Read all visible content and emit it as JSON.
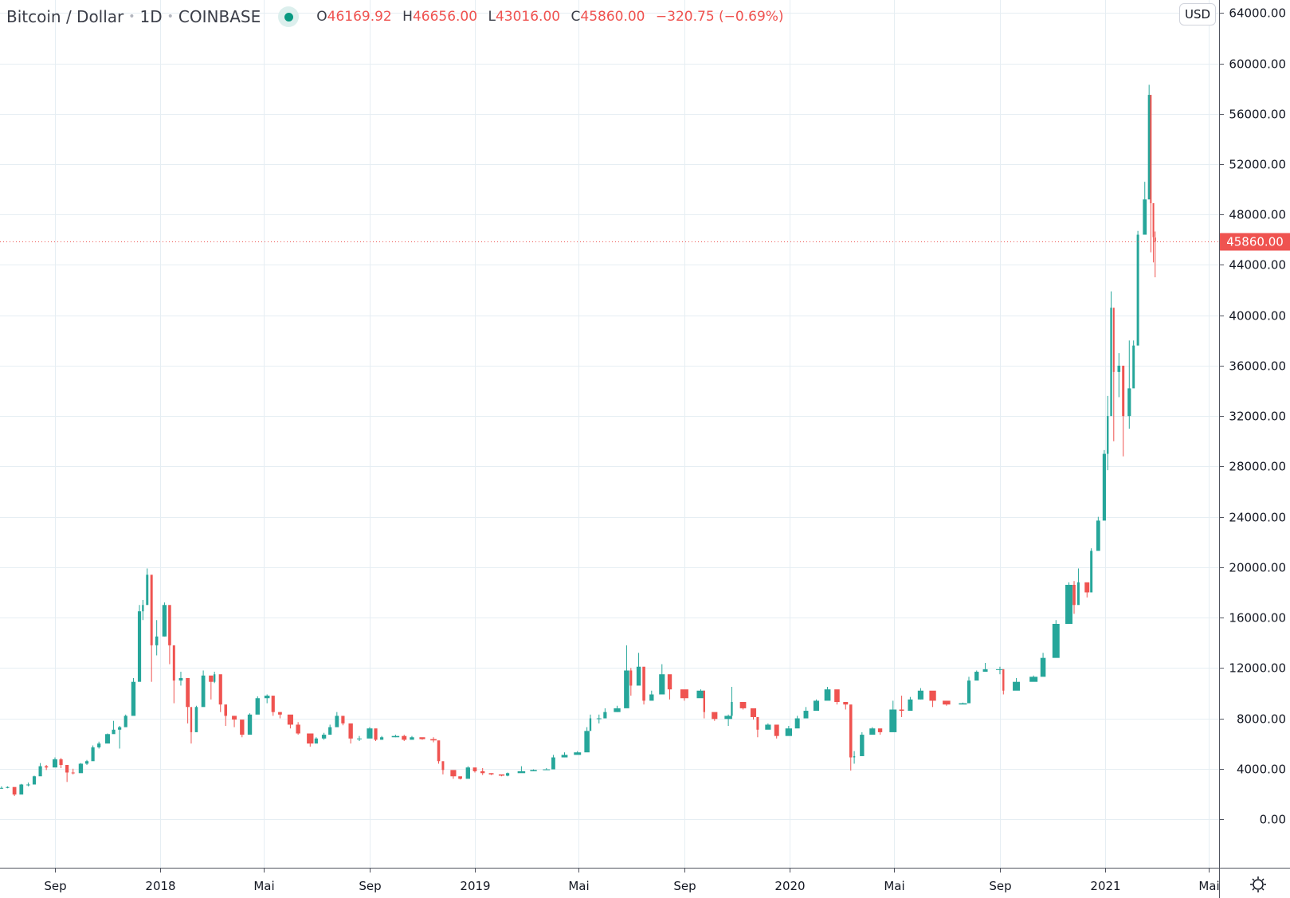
{
  "header": {
    "symbol": "Bitcoin / Dollar",
    "interval": "1D",
    "exchange": "COINBASE",
    "open_label": "O",
    "open": "46169.92",
    "high_label": "H",
    "high": "46656.00",
    "low_label": "L",
    "low": "43016.00",
    "close_label": "C",
    "close": "45860.00",
    "change": "−320.75 (−0.69%)"
  },
  "currency_badge": "USD",
  "settings_icon": "gear-icon",
  "colors": {
    "up": "#26a69a",
    "down": "#ef5350",
    "grid": "#e6eef3",
    "last_price": "#ef5350"
  },
  "chart_data": {
    "type": "candlestick",
    "title": "",
    "ylim": [
      -4000,
      64000
    ],
    "grid": true,
    "y_ticks": [
      "64000.00",
      "60000.00",
      "56000.00",
      "52000.00",
      "48000.00",
      "44000.00",
      "40000.00",
      "36000.00",
      "32000.00",
      "28000.00",
      "24000.00",
      "20000.00",
      "16000.00",
      "12000.00",
      "8000.00",
      "4000.00",
      "0.00"
    ],
    "x_ticks": [
      {
        "label": "Sep",
        "date": "2017-09-01"
      },
      {
        "label": "2018",
        "date": "2018-01-01"
      },
      {
        "label": "Mai",
        "date": "2018-05-01"
      },
      {
        "label": "Sep",
        "date": "2018-09-01"
      },
      {
        "label": "2019",
        "date": "2019-01-01"
      },
      {
        "label": "Mai",
        "date": "2019-05-01"
      },
      {
        "label": "Sep",
        "date": "2019-09-01"
      },
      {
        "label": "2020",
        "date": "2020-01-01"
      },
      {
        "label": "Mai",
        "date": "2020-05-01"
      },
      {
        "label": "Sep",
        "date": "2020-09-01"
      },
      {
        "label": "2021",
        "date": "2021-01-01"
      },
      {
        "label": "Mai",
        "date": "2021-05-01"
      }
    ],
    "last_price": 45860,
    "last_price_label": "45860.00",
    "columns": [
      "date",
      "close",
      "high",
      "low"
    ],
    "candles": [
      [
        "2017-07-01",
        2480,
        2600,
        2400
      ],
      [
        "2017-07-08",
        2550,
        2600,
        2450
      ],
      [
        "2017-07-16",
        1950,
        2350,
        1830
      ],
      [
        "2017-07-24",
        2750,
        2800,
        2600
      ],
      [
        "2017-08-01",
        2750,
        2900,
        2600
      ],
      [
        "2017-08-08",
        3400,
        3450,
        3200
      ],
      [
        "2017-08-15",
        4200,
        4450,
        3950
      ],
      [
        "2017-08-22",
        4100,
        4300,
        3900
      ],
      [
        "2017-09-01",
        4750,
        4900,
        4650
      ],
      [
        "2017-09-08",
        4300,
        4850,
        4050
      ],
      [
        "2017-09-15",
        3700,
        3900,
        2950
      ],
      [
        "2017-09-22",
        3650,
        4000,
        3550
      ],
      [
        "2017-10-01",
        4400,
        4450,
        4150
      ],
      [
        "2017-10-08",
        4600,
        4700,
        4300
      ],
      [
        "2017-10-15",
        5700,
        5850,
        5400
      ],
      [
        "2017-10-22",
        6000,
        6150,
        5600
      ],
      [
        "2017-11-01",
        6750,
        6800,
        6100
      ],
      [
        "2017-11-08",
        7100,
        7800,
        6900
      ],
      [
        "2017-11-15",
        7300,
        7400,
        5600
      ],
      [
        "2017-11-22",
        8200,
        8300,
        7800
      ],
      [
        "2017-12-01",
        10900,
        11200,
        9500
      ],
      [
        "2017-12-08",
        16500,
        17000,
        13500
      ],
      [
        "2017-12-12",
        17000,
        17400,
        15800
      ],
      [
        "2017-12-17",
        19400,
        19900,
        18400
      ],
      [
        "2017-12-22",
        13800,
        16500,
        10900
      ],
      [
        "2017-12-28",
        14500,
        15800,
        13000
      ],
      [
        "2018-01-06",
        17000,
        17200,
        14500
      ],
      [
        "2018-01-12",
        13800,
        14500,
        12300
      ],
      [
        "2018-01-17",
        11000,
        13500,
        9200
      ],
      [
        "2018-01-25",
        11200,
        11700,
        10600
      ],
      [
        "2018-02-02",
        8900,
        10100,
        7600
      ],
      [
        "2018-02-06",
        6900,
        8000,
        6000
      ],
      [
        "2018-02-12",
        8900,
        9000,
        8000
      ],
      [
        "2018-02-20",
        11400,
        11800,
        10500
      ],
      [
        "2018-03-01",
        10900,
        11100,
        9500
      ],
      [
        "2018-03-05",
        11500,
        11700,
        10800
      ],
      [
        "2018-03-12",
        9100,
        10000,
        8500
      ],
      [
        "2018-03-18",
        8200,
        8500,
        7400
      ],
      [
        "2018-03-28",
        7900,
        8200,
        7300
      ],
      [
        "2018-04-06",
        6700,
        7200,
        6500
      ],
      [
        "2018-04-15",
        8300,
        8400,
        7800
      ],
      [
        "2018-04-24",
        9600,
        9750,
        9000
      ],
      [
        "2018-05-05",
        9800,
        9900,
        9200
      ],
      [
        "2018-05-12",
        8500,
        8700,
        8200
      ],
      [
        "2018-05-20",
        8300,
        8500,
        8000
      ],
      [
        "2018-06-01",
        7500,
        7600,
        7200
      ],
      [
        "2018-06-10",
        6800,
        7700,
        6700
      ],
      [
        "2018-06-24",
        6000,
        6200,
        5750
      ],
      [
        "2018-07-01",
        6400,
        6500,
        6100
      ],
      [
        "2018-07-10",
        6700,
        6850,
        6300
      ],
      [
        "2018-07-17",
        7300,
        7500,
        6700
      ],
      [
        "2018-07-25",
        8200,
        8500,
        8000
      ],
      [
        "2018-08-01",
        7600,
        7800,
        7450
      ],
      [
        "2018-08-10",
        6400,
        6600,
        6000
      ],
      [
        "2018-08-20",
        6400,
        6600,
        6200
      ],
      [
        "2018-09-01",
        7200,
        7300,
        7000
      ],
      [
        "2018-09-08",
        6300,
        6500,
        6200
      ],
      [
        "2018-09-15",
        6500,
        6600,
        6300
      ],
      [
        "2018-10-01",
        6600,
        6700,
        6500
      ],
      [
        "2018-10-11",
        6300,
        6700,
        6200
      ],
      [
        "2018-10-20",
        6500,
        6600,
        6400
      ],
      [
        "2018-11-01",
        6350,
        6450,
        6300
      ],
      [
        "2018-11-14",
        6250,
        6500,
        6100
      ],
      [
        "2018-11-20",
        4600,
        5300,
        4400
      ],
      [
        "2018-11-25",
        3900,
        4300,
        3550
      ],
      [
        "2018-12-07",
        3400,
        3700,
        3200
      ],
      [
        "2018-12-15",
        3200,
        3300,
        3150
      ],
      [
        "2018-12-24",
        4100,
        4200,
        3800
      ],
      [
        "2019-01-01",
        3800,
        3900,
        3700
      ],
      [
        "2019-01-10",
        3650,
        4050,
        3500
      ],
      [
        "2019-01-20",
        3550,
        3650,
        3500
      ],
      [
        "2019-02-01",
        3450,
        3500,
        3400
      ],
      [
        "2019-02-08",
        3650,
        3700,
        3400
      ],
      [
        "2019-02-24",
        3800,
        4200,
        3700
      ],
      [
        "2019-03-10",
        3900,
        3950,
        3850
      ],
      [
        "2019-03-25",
        3950,
        4050,
        3900
      ],
      [
        "2019-04-02",
        4900,
        5100,
        4200
      ],
      [
        "2019-04-15",
        5100,
        5300,
        4900
      ],
      [
        "2019-04-30",
        5300,
        5400,
        5150
      ],
      [
        "2019-05-11",
        7000,
        7300,
        6000
      ],
      [
        "2019-05-15",
        8000,
        8300,
        7500
      ],
      [
        "2019-05-25",
        8000,
        8300,
        7600
      ],
      [
        "2019-06-01",
        8500,
        8800,
        8200
      ],
      [
        "2019-06-15",
        8800,
        9000,
        8500
      ],
      [
        "2019-06-26",
        11800,
        13800,
        11000
      ],
      [
        "2019-07-01",
        10600,
        12000,
        9800
      ],
      [
        "2019-07-10",
        12100,
        13200,
        11800
      ],
      [
        "2019-07-16",
        9400,
        11000,
        9100
      ],
      [
        "2019-07-25",
        9900,
        10200,
        9500
      ],
      [
        "2019-08-06",
        11500,
        12300,
        11000
      ],
      [
        "2019-08-15",
        10300,
        10500,
        9500
      ],
      [
        "2019-09-01",
        9600,
        9800,
        9400
      ],
      [
        "2019-09-20",
        10200,
        10300,
        9800
      ],
      [
        "2019-09-24",
        8500,
        9900,
        8000
      ],
      [
        "2019-10-06",
        7950,
        8200,
        7800
      ],
      [
        "2019-10-22",
        8200,
        8300,
        7400
      ],
      [
        "2019-10-26",
        9300,
        10500,
        8600
      ],
      [
        "2019-11-08",
        8800,
        9250,
        8700
      ],
      [
        "2019-11-20",
        8100,
        8200,
        7900
      ],
      [
        "2019-11-25",
        7100,
        7400,
        6500
      ],
      [
        "2019-12-07",
        7500,
        7600,
        7400
      ],
      [
        "2019-12-17",
        6600,
        7200,
        6400
      ],
      [
        "2019-12-31",
        7200,
        7400,
        7100
      ],
      [
        "2020-01-10",
        8000,
        8200,
        7700
      ],
      [
        "2020-01-20",
        8600,
        8900,
        8500
      ],
      [
        "2020-02-01",
        9400,
        9500,
        9300
      ],
      [
        "2020-02-14",
        10300,
        10500,
        10000
      ],
      [
        "2020-02-25",
        9300,
        9700,
        9100
      ],
      [
        "2020-03-06",
        9100,
        9200,
        8700
      ],
      [
        "2020-03-12",
        4900,
        7900,
        3850
      ],
      [
        "2020-03-16",
        5000,
        5400,
        4400
      ],
      [
        "2020-03-25",
        6700,
        6900,
        6500
      ],
      [
        "2020-04-06",
        7200,
        7300,
        6800
      ],
      [
        "2020-04-15",
        6900,
        7000,
        6700
      ],
      [
        "2020-04-30",
        8700,
        9400,
        8600
      ],
      [
        "2020-05-10",
        8600,
        9800,
        8100
      ],
      [
        "2020-05-20",
        9500,
        9700,
        9300
      ],
      [
        "2020-06-01",
        10200,
        10400,
        9500
      ],
      [
        "2020-06-15",
        9400,
        9500,
        8900
      ],
      [
        "2020-07-01",
        9100,
        9200,
        9000
      ],
      [
        "2020-07-20",
        9200,
        9250,
        9150
      ],
      [
        "2020-07-27",
        11000,
        11300,
        9800
      ],
      [
        "2020-08-05",
        11700,
        11800,
        11100
      ],
      [
        "2020-08-15",
        11900,
        12400,
        11700
      ],
      [
        "2020-09-01",
        11900,
        12100,
        11500
      ],
      [
        "2020-09-05",
        10200,
        10600,
        9900
      ],
      [
        "2020-09-20",
        10900,
        11200,
        10500
      ],
      [
        "2020-10-10",
        11300,
        11400,
        11000
      ],
      [
        "2020-10-21",
        12800,
        13200,
        12000
      ],
      [
        "2020-11-05",
        15500,
        15800,
        14000
      ],
      [
        "2020-11-20",
        18600,
        18800,
        17700
      ],
      [
        "2020-11-26",
        17000,
        18900,
        16300
      ],
      [
        "2020-12-01",
        18800,
        19900,
        18200
      ],
      [
        "2020-12-11",
        18000,
        18300,
        17600
      ],
      [
        "2020-12-16",
        21300,
        21500,
        19300
      ],
      [
        "2020-12-24",
        23700,
        24000,
        22500
      ],
      [
        "2020-12-31",
        29000,
        29300,
        27800
      ],
      [
        "2021-01-04",
        32000,
        33600,
        27700
      ],
      [
        "2021-01-08",
        40600,
        41900,
        36500
      ],
      [
        "2021-01-11",
        35500,
        38500,
        30000
      ],
      [
        "2021-01-17",
        36000,
        37000,
        33500
      ],
      [
        "2021-01-22",
        32000,
        33800,
        28800
      ],
      [
        "2021-01-29",
        34200,
        38000,
        31000
      ],
      [
        "2021-02-03",
        37600,
        38000,
        35400
      ],
      [
        "2021-02-08",
        46400,
        46700,
        38100
      ],
      [
        "2021-02-16",
        49200,
        50600,
        47000
      ],
      [
        "2021-02-21",
        57500,
        58300,
        55500
      ],
      [
        "2021-02-23",
        48900,
        54200,
        45000
      ],
      [
        "2021-02-26",
        46200,
        48300,
        44200
      ],
      [
        "2021-02-28",
        45860,
        46656,
        43016
      ]
    ]
  }
}
